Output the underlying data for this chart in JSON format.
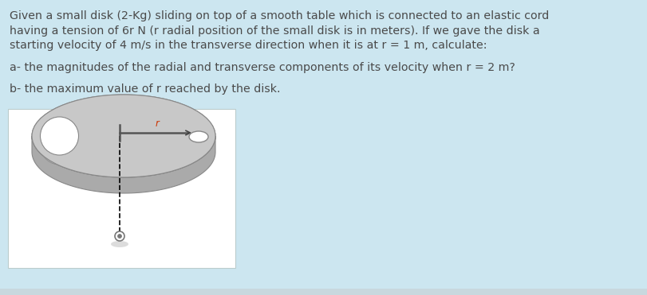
{
  "background_color": "#cce6f0",
  "text_color": "#4a4a4a",
  "title_lines": [
    "Given a small disk (2-Kg) sliding on top of a smooth table which is connected to an elastic cord",
    "having a tension of 6r N (r radial position of the small disk is in meters). If we gave the disk a",
    "starting velocity of 4 m/s in the transverse direction when it is at r = 1 m, calculate:"
  ],
  "question_a": "a- the magnitudes of the radial and transverse components of its velocity when r = 2 m?",
  "question_b": "b- the maximum value of r reached by the disk.",
  "font_size": 10.2,
  "top_color": "#c8c8c8",
  "side_color": "#aaaaaa",
  "edge_color": "#888888",
  "bottom_bar_color": "#d0dde3"
}
